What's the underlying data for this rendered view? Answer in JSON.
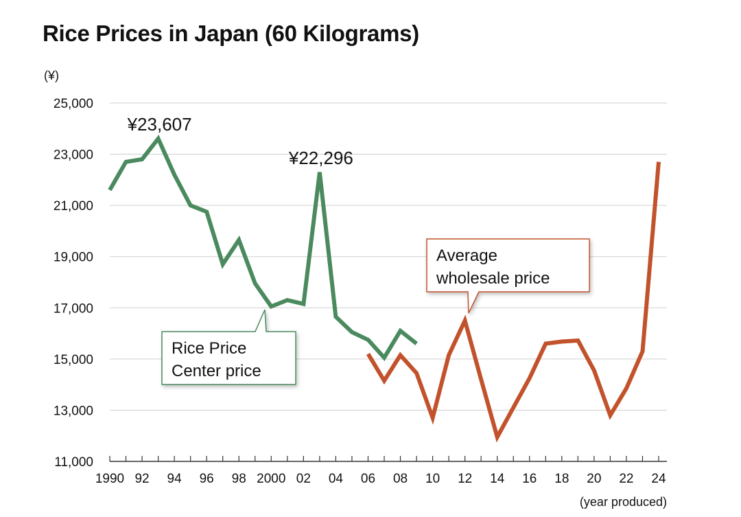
{
  "chart_data": {
    "type": "line",
    "title": "Rice Prices in Japan (60 Kilograms)",
    "ylabel": "(¥)",
    "xlabel": "(year produced)",
    "ylim": [
      11000,
      25000
    ],
    "xlim": [
      1990,
      2024
    ],
    "yticks": [
      11000,
      13000,
      15000,
      17000,
      19000,
      21000,
      23000,
      25000
    ],
    "ytick_labels": [
      "11,000",
      "13,000",
      "15,000",
      "17,000",
      "19,000",
      "21,000",
      "23,000",
      "25,000"
    ],
    "xticks": [
      1990,
      1992,
      1994,
      1996,
      1998,
      2000,
      2002,
      2004,
      2006,
      2008,
      2010,
      2012,
      2014,
      2016,
      2018,
      2020,
      2022,
      2024
    ],
    "xtick_labels": [
      "1990",
      "92",
      "94",
      "96",
      "98",
      "2000",
      "02",
      "04",
      "06",
      "08",
      "10",
      "12",
      "14",
      "16",
      "18",
      "20",
      "22",
      "24"
    ],
    "grid": true,
    "series": [
      {
        "name": "Rice Price Center price",
        "color": "#4a8a5e",
        "x": [
          1990,
          1991,
          1992,
          1993,
          1994,
          1995,
          1996,
          1997,
          1998,
          1999,
          2000,
          2001,
          2002,
          2003,
          2004,
          2005,
          2006,
          2007,
          2008,
          2009
        ],
        "y": [
          21600,
          22700,
          22800,
          23607,
          22200,
          21000,
          20750,
          18700,
          19650,
          17950,
          17050,
          17300,
          17150,
          22296,
          16650,
          16050,
          15750,
          15050,
          16100,
          15600
        ]
      },
      {
        "name": "Average wholesale price",
        "color": "#c2522b",
        "x": [
          2006,
          2007,
          2008,
          2009,
          2010,
          2011,
          2012,
          2013,
          2014,
          2015,
          2016,
          2017,
          2018,
          2019,
          2020,
          2021,
          2022,
          2023,
          2024
        ],
        "y": [
          15200,
          14150,
          15150,
          14450,
          12700,
          15150,
          16500,
          14200,
          11950,
          13100,
          14250,
          15600,
          15680,
          15720,
          14550,
          12800,
          13850,
          15300,
          22700
        ]
      }
    ],
    "annotations": [
      {
        "text": "¥23,607",
        "x": 1993,
        "y": 23607
      },
      {
        "text": "¥22,296",
        "x": 2003,
        "y": 22296
      }
    ],
    "callouts": [
      {
        "series": 0,
        "lines": [
          "Rice Price",
          "Center price"
        ],
        "color": "#4a8a5e"
      },
      {
        "series": 1,
        "lines": [
          "Average",
          "wholesale price"
        ],
        "color": "#c2522b"
      }
    ]
  }
}
